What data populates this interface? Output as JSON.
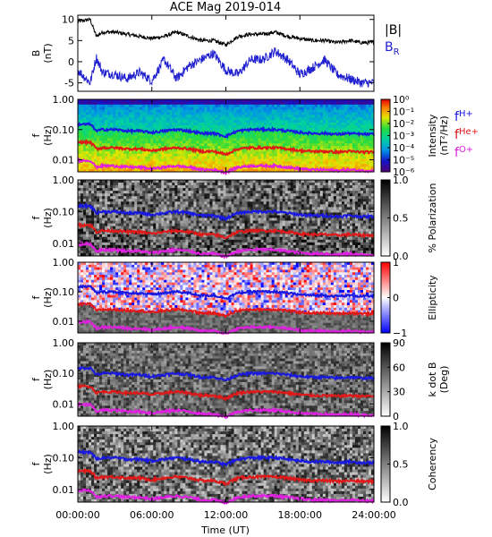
{
  "title": "ACE Mag 2019-014",
  "x_axis": {
    "label": "Time (UT)",
    "ticks": [
      "00:00:00",
      "06:00:00",
      "12:00:00",
      "18:00:00",
      "24:00:00"
    ]
  },
  "legend": {
    "panel1": [
      {
        "label": "|B|",
        "color": "#000000"
      },
      {
        "label": "B",
        "sub": "R",
        "color": "#2020d0"
      }
    ],
    "freq_lines": [
      {
        "label": "f",
        "sub": "H+",
        "color": "#1818e0"
      },
      {
        "label": "f",
        "sub": "He+",
        "color": "#e01818"
      },
      {
        "label": "f",
        "sub": "O+",
        "color": "#e020e0"
      }
    ]
  },
  "chart_data": [
    {
      "type": "line",
      "panel": "magnetic-field",
      "ylabel": "B",
      "yunit": "(nT)",
      "ylim": [
        -7,
        11
      ],
      "yticks": [
        "10",
        "5",
        "0",
        "-5"
      ],
      "x_hours": [
        0,
        1,
        1.5,
        2,
        3,
        4,
        5,
        6,
        7,
        8,
        9,
        10,
        11,
        12,
        13,
        14,
        15,
        16,
        17,
        18,
        19,
        20,
        21,
        22,
        23,
        24
      ],
      "series": [
        {
          "name": "|B|",
          "color": "#000000",
          "values": [
            9.5,
            10,
            6,
            7,
            7,
            6.5,
            6,
            5.5,
            6,
            7,
            6,
            5,
            5,
            4,
            6,
            6.5,
            6.5,
            7,
            6,
            5.5,
            5,
            5,
            4.5,
            5,
            4.5,
            4.5
          ]
        },
        {
          "name": "B_R",
          "color": "#2020d0",
          "values": [
            -2,
            -5,
            1,
            -2.5,
            -3,
            -4,
            -2.5,
            -4.5,
            0.5,
            -4,
            -1,
            0.5,
            2,
            -2,
            -3,
            0.5,
            0.5,
            2.5,
            0.5,
            -3,
            -1.5,
            0.5,
            -3,
            -4,
            -5,
            -5
          ]
        }
      ]
    },
    {
      "type": "heatmap",
      "panel": "intensity",
      "ylabel": "f",
      "yunit": "(Hz)",
      "yscale": "log",
      "yticks": [
        "1.00",
        "0.10",
        "0.01"
      ],
      "colorbar": {
        "label": "Intensity",
        "unit": "(nT²/Hz)",
        "ticks": [
          "10⁰",
          "10⁻¹",
          "10⁻²",
          "10⁻³",
          "10⁻⁴",
          "10⁻⁵",
          "10⁻⁶"
        ],
        "scale": "rainbow"
      }
    },
    {
      "type": "heatmap",
      "panel": "polarization",
      "ylabel": "f",
      "yunit": "(Hz)",
      "yscale": "log",
      "yticks": [
        "1.00",
        "0.10",
        "0.01"
      ],
      "colorbar": {
        "label": "% Polarization",
        "unit": "",
        "ticks": [
          "1.0",
          "0.5",
          "0.0"
        ],
        "scale": "gray"
      }
    },
    {
      "type": "heatmap",
      "panel": "ellipticity",
      "ylabel": "f",
      "yunit": "(Hz)",
      "yscale": "log",
      "yticks": [
        "1.00",
        "0.10",
        "0.01"
      ],
      "colorbar": {
        "label": "Ellipticity",
        "unit": "",
        "ticks": [
          "1",
          "0",
          "−1"
        ],
        "scale": "redblue"
      }
    },
    {
      "type": "heatmap",
      "panel": "wave-normal-angle",
      "ylabel": "f",
      "yunit": "(Hz)",
      "yscale": "log",
      "yticks": [
        "1.00",
        "0.10",
        "0.01"
      ],
      "colorbar": {
        "label": "k dot B",
        "unit": "(Deg)",
        "ticks": [
          "90",
          "60",
          "30",
          "0"
        ],
        "scale": "gray"
      }
    },
    {
      "type": "heatmap",
      "panel": "coherency",
      "ylabel": "f",
      "yunit": "(Hz)",
      "yscale": "log",
      "yticks": [
        "1.00",
        "0.10",
        "0.01"
      ],
      "colorbar": {
        "label": "Coherency",
        "unit": "",
        "ticks": [
          "1.0",
          "0.5",
          "0.0"
        ],
        "scale": "gray"
      }
    }
  ],
  "gyrofrequency_lines_hz": {
    "x_hours": [
      0,
      1,
      1.5,
      2,
      3,
      4,
      5,
      6,
      7,
      8,
      9,
      10,
      11,
      12,
      13,
      14,
      15,
      16,
      17,
      18,
      19,
      20,
      21,
      22,
      23,
      24
    ],
    "fH+": [
      0.15,
      0.15,
      0.09,
      0.1,
      0.1,
      0.09,
      0.09,
      0.08,
      0.09,
      0.1,
      0.09,
      0.075,
      0.075,
      0.06,
      0.09,
      0.1,
      0.1,
      0.1,
      0.09,
      0.08,
      0.075,
      0.075,
      0.07,
      0.075,
      0.07,
      0.07
    ],
    "fHe+": [
      0.038,
      0.038,
      0.023,
      0.025,
      0.025,
      0.023,
      0.023,
      0.02,
      0.023,
      0.025,
      0.023,
      0.019,
      0.019,
      0.015,
      0.023,
      0.025,
      0.025,
      0.025,
      0.023,
      0.02,
      0.019,
      0.019,
      0.018,
      0.019,
      0.018,
      0.018
    ],
    "fO+": [
      0.0095,
      0.0095,
      0.0057,
      0.0063,
      0.0063,
      0.0057,
      0.0057,
      0.005,
      0.0057,
      0.0063,
      0.0057,
      0.0047,
      0.0047,
      0.0038,
      0.0057,
      0.0063,
      0.0063,
      0.0063,
      0.0057,
      0.005,
      0.0047,
      0.0047,
      0.0044,
      0.0047,
      0.0044,
      0.0044
    ]
  }
}
